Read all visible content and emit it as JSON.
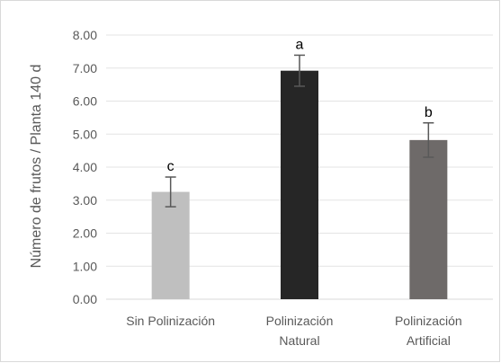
{
  "chart_data": {
    "type": "bar",
    "title": "",
    "xlabel": "",
    "ylabel": "Número de frutos / Planta 140 d",
    "ylim": [
      0,
      8
    ],
    "yticks": [
      "0.00",
      "1.00",
      "2.00",
      "3.00",
      "4.00",
      "5.00",
      "6.00",
      "7.00",
      "8.00"
    ],
    "categories": [
      [
        "Sin Polinización"
      ],
      [
        "Polinización",
        "Natural"
      ],
      [
        "Polinización",
        "Artificial"
      ]
    ],
    "values": [
      3.25,
      6.92,
      4.82
    ],
    "error": [
      0.45,
      0.47,
      0.52
    ],
    "significance": [
      "c",
      "a",
      "b"
    ],
    "colors": [
      "#bfbfbf",
      "#262626",
      "#6e6a69"
    ],
    "grid": true,
    "legend": "none"
  }
}
